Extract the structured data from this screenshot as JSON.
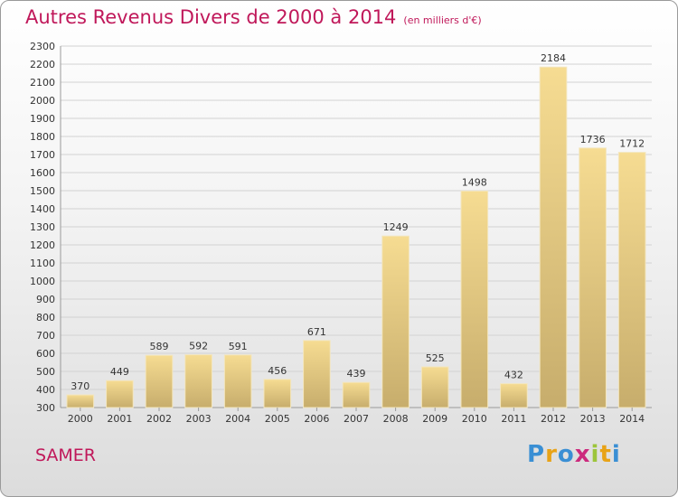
{
  "header": {
    "title": "Autres Revenus Divers de 2000 à 2014",
    "subtitle": "(en milliers d'€)"
  },
  "footer": {
    "location": "SAMER",
    "brand_letters": [
      "P",
      "r",
      "o",
      "x",
      "i",
      "t",
      "i"
    ],
    "brand_colors": [
      "#3a8fd4",
      "#e8a317",
      "#3a8fd4",
      "#cc2a7d",
      "#9cc53a",
      "#e8a317",
      "#3a8fd4"
    ]
  },
  "chart_data": {
    "type": "bar",
    "categories": [
      "2000",
      "2001",
      "2002",
      "2003",
      "2004",
      "2005",
      "2006",
      "2007",
      "2008",
      "2009",
      "2010",
      "2011",
      "2012",
      "2013",
      "2014"
    ],
    "values": [
      370,
      449,
      589,
      592,
      591,
      456,
      671,
      439,
      1249,
      525,
      1498,
      432,
      2184,
      1736,
      1712
    ],
    "ylim": [
      300,
      2300
    ],
    "yticks": [
      300,
      400,
      500,
      600,
      700,
      800,
      900,
      1000,
      1100,
      1200,
      1300,
      1400,
      1500,
      1600,
      1700,
      1800,
      1900,
      2000,
      2100,
      2200,
      2300
    ],
    "grid": true,
    "bar_color_top": "#f6dc92",
    "bar_color_bottom": "#c7ad6c"
  }
}
